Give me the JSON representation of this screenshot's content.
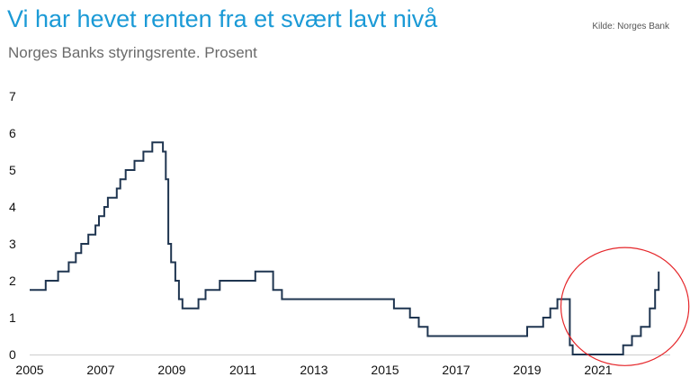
{
  "header": {
    "title": "Vi har hevet renten fra et svært lavt nivå",
    "subtitle": "Norges Banks styringsrente. Prosent",
    "source": "Kilde: Norges Bank"
  },
  "colors": {
    "title": "#1b9ad6",
    "line": "#1f3550",
    "annotation_circle": "#e5262a",
    "axis": "#cccccc"
  },
  "chart_data": {
    "type": "line",
    "step": true,
    "title": "Vi har hevet renten fra et svært lavt nivå",
    "subtitle": "Norges Banks styringsrente. Prosent",
    "xlim": [
      2005,
      2022.9
    ],
    "ylim": [
      0,
      7
    ],
    "x_ticks": [
      "2005",
      "2007",
      "2009",
      "2011",
      "2013",
      "2015",
      "2017",
      "2019",
      "2021"
    ],
    "y_ticks": [
      "0",
      "1",
      "2",
      "3",
      "4",
      "5",
      "6",
      "7"
    ],
    "grid": false,
    "legend": "none",
    "series": [
      {
        "x": [
          2005.0,
          2005.45,
          2005.8,
          2006.1,
          2006.3,
          2006.45,
          2006.65,
          2006.85,
          2006.95,
          2007.1,
          2007.2,
          2007.45,
          2007.55,
          2007.7,
          2007.8,
          2007.95,
          2008.2,
          2008.45,
          2008.75,
          2008.83,
          2008.9,
          2008.98,
          2009.1,
          2009.2,
          2009.3,
          2009.45,
          2009.75,
          2009.95,
          2010.35,
          2011.35,
          2011.85,
          2012.1,
          2015.25,
          2015.7,
          2015.95,
          2016.2,
          2019.0,
          2019.45,
          2019.65,
          2019.85,
          2020.2,
          2020.28,
          2020.4,
          2021.7,
          2021.95,
          2022.2,
          2022.45,
          2022.6,
          2022.7
        ],
        "y": [
          1.75,
          2.0,
          2.25,
          2.5,
          2.75,
          3.0,
          3.25,
          3.5,
          3.75,
          4.0,
          4.25,
          4.5,
          4.75,
          5.0,
          5.0,
          5.25,
          5.5,
          5.75,
          5.5,
          4.75,
          3.0,
          2.5,
          2.0,
          1.5,
          1.25,
          1.25,
          1.5,
          1.75,
          2.0,
          2.25,
          1.75,
          1.5,
          1.25,
          1.0,
          0.75,
          0.5,
          0.75,
          1.0,
          1.25,
          1.5,
          0.25,
          0.0,
          0.0,
          0.25,
          0.5,
          0.75,
          1.25,
          1.75,
          2.25
        ]
      }
    ],
    "annotations": [
      {
        "type": "circle",
        "color": "#e5262a",
        "center": [
          2021.75,
          1.3
        ],
        "radius_x_years": 1.8,
        "radius_y_units": 1.6
      }
    ]
  }
}
